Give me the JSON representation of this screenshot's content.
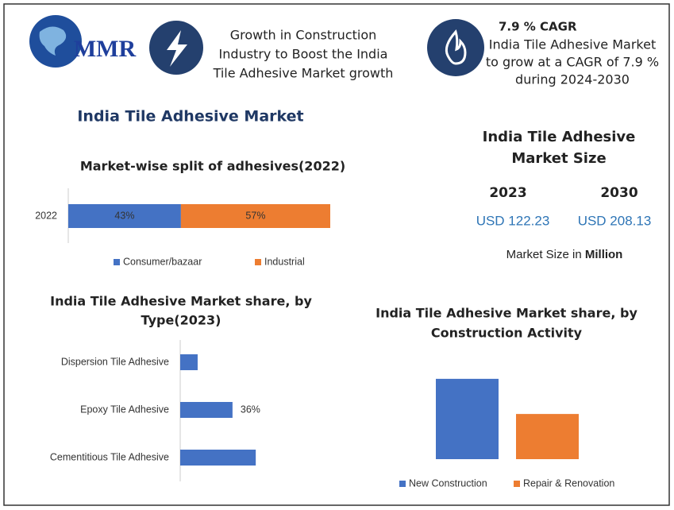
{
  "header": {
    "logo": "MMR",
    "headline": [
      "Growth in Construction",
      "Industry to Boost the India",
      "Tile Adhesive Market growth"
    ],
    "cagr_title": "7.9 % CAGR",
    "cagr_text": [
      "India Tile Adhesive Market",
      "to grow at a CAGR of 7.9 %",
      "during  2024-2030"
    ]
  },
  "title": "India Tile Adhesive Market",
  "market_size": {
    "title": [
      "India Tile Adhesive",
      "Market Size"
    ],
    "years": [
      "2023",
      "2030"
    ],
    "values": [
      "USD 122.23",
      "USD 208.13"
    ],
    "note": "Market Size in",
    "note_unit": "Million"
  },
  "chart_data": [
    {
      "type": "stacked_hbar",
      "title": "Market-wise split of adhesives(2022)",
      "categories": [
        "2022"
      ],
      "series": [
        {
          "name": "Consumer/bazaar",
          "color": "#4472c4",
          "values": [
            43
          ],
          "value_labels": [
            "43%"
          ]
        },
        {
          "name": "Industrial",
          "color": "#ed7d31",
          "values": [
            57
          ],
          "value_labels": [
            "57%"
          ]
        }
      ]
    },
    {
      "type": "hbar",
      "title": [
        "India Tile Adhesive Market share, by",
        "Type(2023)"
      ],
      "categories": [
        "Dispersion Tile Adhesive",
        "Epoxy Tile Adhesive",
        "Cementitious Tile Adhesive"
      ],
      "values": [
        12,
        36,
        52
      ],
      "value_labels": [
        null,
        "36%",
        null
      ],
      "color": "#4472c4"
    },
    {
      "type": "bar",
      "title": [
        "India Tile Adhesive Market share, by",
        "Construction Activity"
      ],
      "categories": [
        null
      ],
      "series": [
        {
          "name": "New Construction",
          "color": "#4472c4",
          "values": [
            64
          ]
        },
        {
          "name": "Repair & Renovation",
          "color": "#ed7d31",
          "values": [
            36
          ]
        }
      ]
    }
  ]
}
